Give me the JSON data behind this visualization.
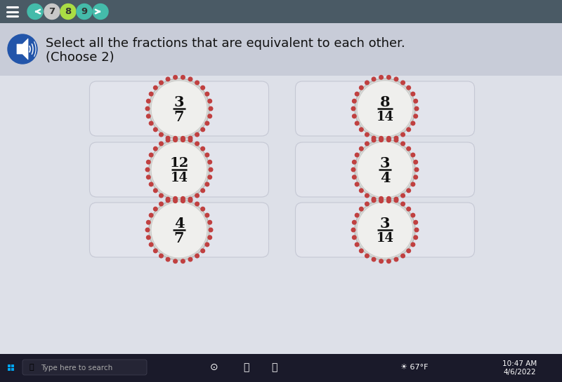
{
  "bg_color": "#dde0e8",
  "top_bar_color": "#4a5a65",
  "question_bg": "#c8ccd8",
  "card_bg": "#e2e4ec",
  "card_border": "#c5c8d4",
  "dot_color": "#c04040",
  "title": "Select all the fractions that are equivalent to each other.",
  "subtitle": "(Choose 2)",
  "fractions": [
    {
      "num": "3",
      "den": "7",
      "row": 0,
      "col": 0
    },
    {
      "num": "8",
      "den": "14",
      "row": 0,
      "col": 1
    },
    {
      "num": "12",
      "den": "14",
      "row": 1,
      "col": 0
    },
    {
      "num": "3",
      "den": "4",
      "row": 1,
      "col": 1
    },
    {
      "num": "4",
      "den": "7",
      "row": 2,
      "col": 0
    },
    {
      "num": "3",
      "den": "14",
      "row": 2,
      "col": 1
    }
  ],
  "nav_numbers": [
    "7",
    "8",
    "9"
  ],
  "nav_colors": [
    "#c8c8c8",
    "#aadd44",
    "#44bbaa"
  ],
  "nav_arrow_color": "#44bbaa",
  "figsize": [
    8.0,
    5.45
  ],
  "dpi": 100
}
